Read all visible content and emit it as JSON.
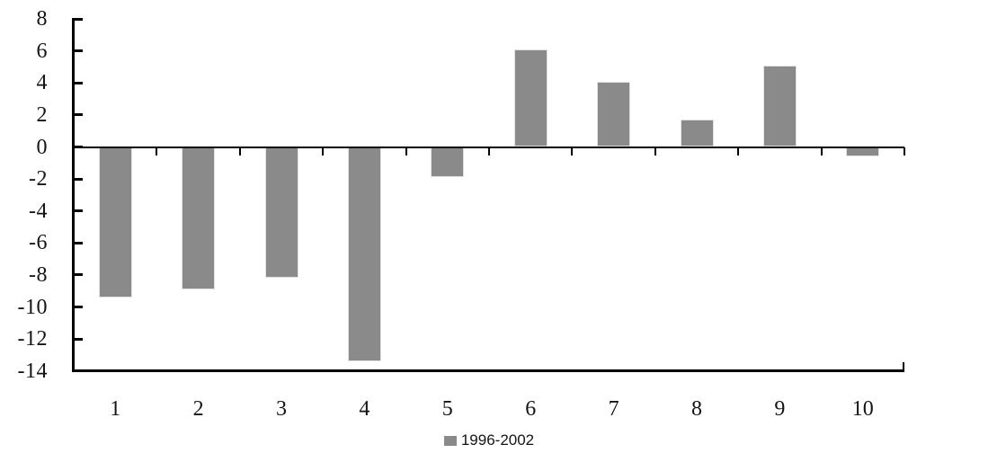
{
  "chart_data": {
    "type": "bar",
    "title": "",
    "xlabel": "",
    "ylabel": "",
    "categories": [
      "1",
      "2",
      "3",
      "4",
      "5",
      "6",
      "7",
      "8",
      "9",
      "10"
    ],
    "series": [
      {
        "name": "1996-2002",
        "color": "#8a8a8a",
        "values": [
          -9.4,
          -8.9,
          -8.2,
          -13.4,
          -1.9,
          6.1,
          4.1,
          1.7,
          5.1,
          -0.6
        ]
      }
    ],
    "ylim": [
      -14,
      8
    ],
    "ytick_step": 2,
    "yticks": [
      8,
      6,
      4,
      2,
      0,
      -2,
      -4,
      -6,
      -8,
      -10,
      -12,
      -14
    ],
    "grid": false,
    "legend_position": "bottom",
    "axis_color": "#000000",
    "bar_border_color": "#e2e2e2",
    "text_color": "#141414"
  }
}
